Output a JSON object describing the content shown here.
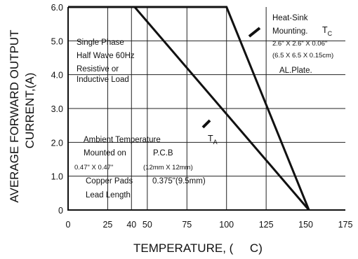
{
  "chart_data": {
    "type": "line",
    "xlabel": "TEMPERATURE, (     C)",
    "ylabel_lines": [
      "AVERAGE FORWARD OUTPUT",
      "CURRENT,(A)"
    ],
    "xlim": [
      0,
      175
    ],
    "ylim": [
      0,
      6.0
    ],
    "x_ticks": [
      0,
      25,
      40,
      50,
      75,
      100,
      125,
      150,
      175
    ],
    "y_ticks": [
      "0",
      "1.0",
      "2.0",
      "3.0",
      "4.0",
      "5.0",
      "6.0"
    ],
    "y_tick_values": [
      0,
      1,
      2,
      3,
      4,
      5,
      6
    ],
    "grid_x": [
      25,
      40,
      50,
      75,
      100,
      125
    ],
    "grid_y": [
      1,
      2,
      3,
      4,
      5
    ],
    "series": [
      {
        "label": "T",
        "label_sub": "C",
        "points": [
          [
            0,
            6.0
          ],
          [
            100,
            6.0
          ],
          [
            152,
            0
          ]
        ]
      },
      {
        "label": "T",
        "label_sub": "A",
        "points": [
          [
            0,
            6.0
          ],
          [
            42,
            6.0
          ],
          [
            152,
            0
          ]
        ]
      }
    ],
    "annotations": {
      "conditions": [
        "Single Phase",
        "Half Wave 60Hz",
        "Resistive or",
        "Inductive Load"
      ],
      "heat_sink": [
        "Heat-Sink",
        "Mounting."
      ],
      "heat_sink_dims": [
        "2.6\" X 2.6\" X 0.06\"",
        "(6.5 X 6.5 X 0.15cm)"
      ],
      "plate": "AL.Plate.",
      "ambient": [
        "Ambient Temperature",
        "Mounted on",
        "P.C.B"
      ],
      "pad_dims": [
        "0.47\" X 0.47\"",
        "(12mm X 12mm)"
      ],
      "pads": "Copper Pads",
      "pad_lead": "0.375\"(9.5mm)",
      "lead_length": "Lead Length"
    }
  }
}
